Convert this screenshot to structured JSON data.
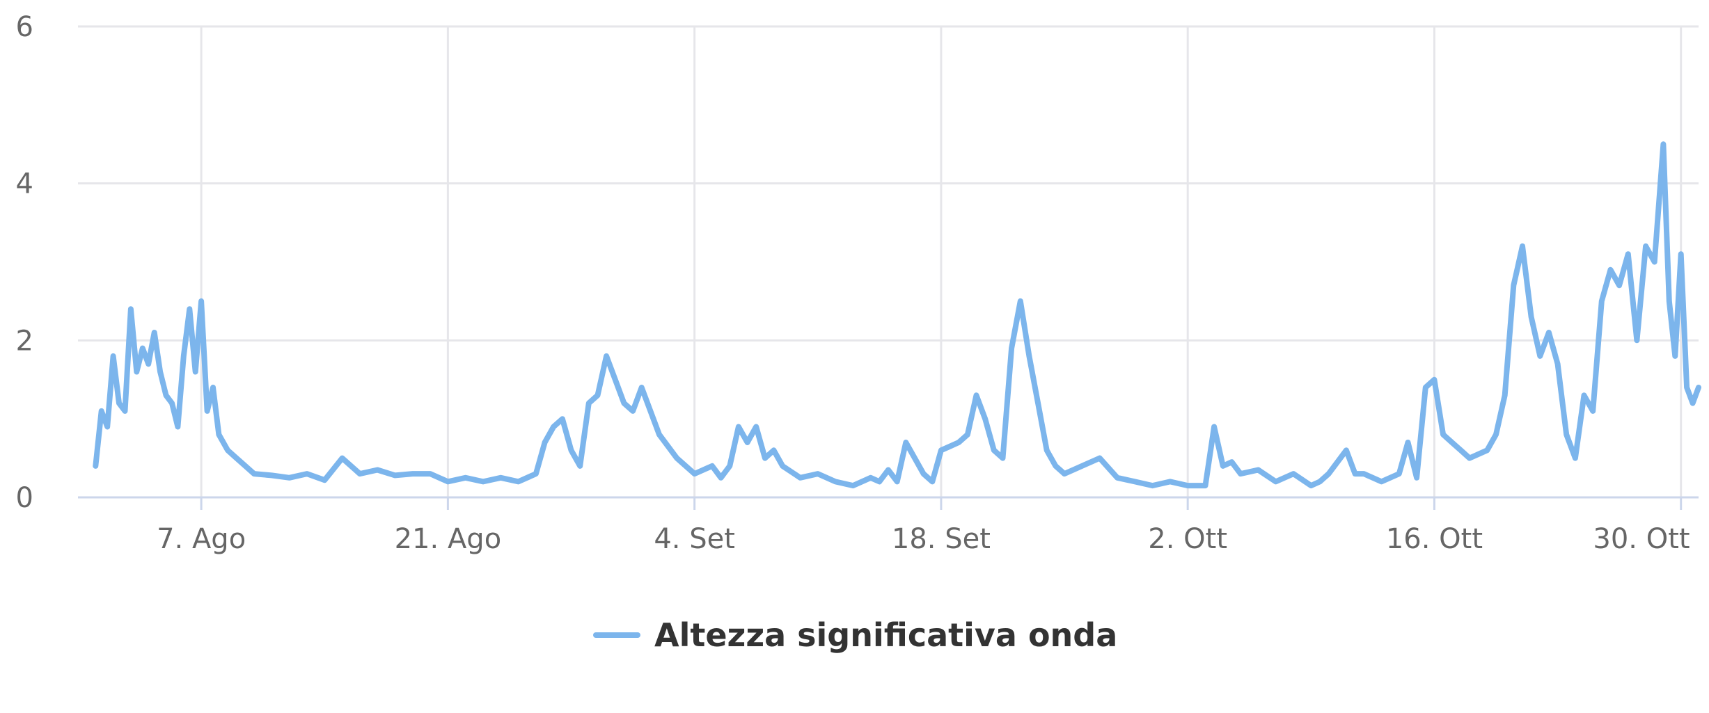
{
  "chart_data": {
    "type": "line",
    "title": "",
    "xlabel": "",
    "ylabel": "",
    "ylim": [
      0,
      6
    ],
    "y_ticks": [
      0,
      2,
      4,
      6
    ],
    "x_range": [
      "2023-07-31",
      "2023-10-31"
    ],
    "x_ticks": [
      {
        "date": "2023-08-07",
        "label": "7. Ago"
      },
      {
        "date": "2023-08-21",
        "label": "21. Ago"
      },
      {
        "date": "2023-09-04",
        "label": "4. Set"
      },
      {
        "date": "2023-09-18",
        "label": "18. Set"
      },
      {
        "date": "2023-10-02",
        "label": "2. Ott"
      },
      {
        "date": "2023-10-16",
        "label": "16. Ott"
      },
      {
        "date": "2023-10-30",
        "label": "30. Ott"
      }
    ],
    "grid": true,
    "legend_position": "bottom-center",
    "colors": {
      "series": "#7cb5ec"
    },
    "series": [
      {
        "name": "Altezza significativa onda",
        "x": [
          "2023-08-01 00:00",
          "2023-08-01 08:00",
          "2023-08-01 16:00",
          "2023-08-02 00:00",
          "2023-08-02 08:00",
          "2023-08-02 16:00",
          "2023-08-03 00:00",
          "2023-08-03 08:00",
          "2023-08-03 16:00",
          "2023-08-04 00:00",
          "2023-08-04 08:00",
          "2023-08-04 16:00",
          "2023-08-05 00:00",
          "2023-08-05 08:00",
          "2023-08-05 16:00",
          "2023-08-06 00:00",
          "2023-08-06 08:00",
          "2023-08-06 16:00",
          "2023-08-07 00:00",
          "2023-08-07 08:00",
          "2023-08-07 16:00",
          "2023-08-08 00:00",
          "2023-08-08 12:00",
          "2023-08-09 00:00",
          "2023-08-09 12:00",
          "2023-08-10 00:00",
          "2023-08-11 00:00",
          "2023-08-12 00:00",
          "2023-08-13 00:00",
          "2023-08-14 00:00",
          "2023-08-15 00:00",
          "2023-08-16 00:00",
          "2023-08-17 00:00",
          "2023-08-18 00:00",
          "2023-08-19 00:00",
          "2023-08-20 00:00",
          "2023-08-21 00:00",
          "2023-08-22 00:00",
          "2023-08-23 00:00",
          "2023-08-24 00:00",
          "2023-08-25 00:00",
          "2023-08-26 00:00",
          "2023-08-26 12:00",
          "2023-08-27 00:00",
          "2023-08-27 12:00",
          "2023-08-28 00:00",
          "2023-08-28 12:00",
          "2023-08-29 00:00",
          "2023-08-29 12:00",
          "2023-08-30 00:00",
          "2023-08-30 12:00",
          "2023-08-31 00:00",
          "2023-08-31 12:00",
          "2023-09-01 00:00",
          "2023-09-02 00:00",
          "2023-09-03 00:00",
          "2023-09-04 00:00",
          "2023-09-05 00:00",
          "2023-09-05 12:00",
          "2023-09-06 00:00",
          "2023-09-06 12:00",
          "2023-09-07 00:00",
          "2023-09-07 12:00",
          "2023-09-08 00:00",
          "2023-09-08 12:00",
          "2023-09-09 00:00",
          "2023-09-10 00:00",
          "2023-09-11 00:00",
          "2023-09-12 00:00",
          "2023-09-13 00:00",
          "2023-09-14 00:00",
          "2023-09-14 12:00",
          "2023-09-15 00:00",
          "2023-09-15 12:00",
          "2023-09-16 00:00",
          "2023-09-16 12:00",
          "2023-09-17 00:00",
          "2023-09-17 12:00",
          "2023-09-18 00:00",
          "2023-09-18 12:00",
          "2023-09-19 00:00",
          "2023-09-19 12:00",
          "2023-09-20 00:00",
          "2023-09-20 12:00",
          "2023-09-21 00:00",
          "2023-09-21 12:00",
          "2023-09-22 00:00",
          "2023-09-22 12:00",
          "2023-09-23 00:00",
          "2023-09-23 12:00",
          "2023-09-24 00:00",
          "2023-09-24 12:00",
          "2023-09-25 00:00",
          "2023-09-26 00:00",
          "2023-09-27 00:00",
          "2023-09-28 00:00",
          "2023-09-29 00:00",
          "2023-09-30 00:00",
          "2023-10-01 00:00",
          "2023-10-02 00:00",
          "2023-10-03 00:00",
          "2023-10-03 12:00",
          "2023-10-04 00:00",
          "2023-10-04 12:00",
          "2023-10-05 00:00",
          "2023-10-06 00:00",
          "2023-10-07 00:00",
          "2023-10-08 00:00",
          "2023-10-09 00:00",
          "2023-10-09 12:00",
          "2023-10-10 00:00",
          "2023-10-11 00:00",
          "2023-10-11 12:00",
          "2023-10-12 00:00",
          "2023-10-13 00:00",
          "2023-10-14 00:00",
          "2023-10-14 12:00",
          "2023-10-15 00:00",
          "2023-10-15 12:00",
          "2023-10-16 00:00",
          "2023-10-16 12:00",
          "2023-10-17 00:00",
          "2023-10-17 12:00",
          "2023-10-18 00:00",
          "2023-10-19 00:00",
          "2023-10-19 12:00",
          "2023-10-20 00:00",
          "2023-10-20 12:00",
          "2023-10-21 00:00",
          "2023-10-21 12:00",
          "2023-10-22 00:00",
          "2023-10-22 12:00",
          "2023-10-23 00:00",
          "2023-10-23 12:00",
          "2023-10-24 00:00",
          "2023-10-24 12:00",
          "2023-10-25 00:00",
          "2023-10-25 12:00",
          "2023-10-26 00:00",
          "2023-10-26 12:00",
          "2023-10-27 00:00",
          "2023-10-27 12:00",
          "2023-10-28 00:00",
          "2023-10-28 12:00",
          "2023-10-29 00:00",
          "2023-10-29 08:00",
          "2023-10-29 16:00",
          "2023-10-30 00:00",
          "2023-10-30 08:00",
          "2023-10-30 16:00",
          "2023-10-31 00:00"
        ],
        "values": [
          0.4,
          1.1,
          0.9,
          1.8,
          1.2,
          1.1,
          2.4,
          1.6,
          1.9,
          1.7,
          2.1,
          1.6,
          1.3,
          1.2,
          0.9,
          1.8,
          2.4,
          1.6,
          2.5,
          1.1,
          1.4,
          0.8,
          0.6,
          0.5,
          0.4,
          0.3,
          0.28,
          0.25,
          0.3,
          0.22,
          0.5,
          0.3,
          0.35,
          0.28,
          0.3,
          0.3,
          0.2,
          0.25,
          0.2,
          0.25,
          0.2,
          0.3,
          0.7,
          0.9,
          1.0,
          0.6,
          0.4,
          1.2,
          1.3,
          1.8,
          1.5,
          1.2,
          1.1,
          1.4,
          0.8,
          0.5,
          0.3,
          0.4,
          0.25,
          0.4,
          0.9,
          0.7,
          0.9,
          0.5,
          0.6,
          0.4,
          0.25,
          0.3,
          0.2,
          0.15,
          0.25,
          0.2,
          0.35,
          0.2,
          0.7,
          0.5,
          0.3,
          0.2,
          0.6,
          0.65,
          0.7,
          0.8,
          1.3,
          1.0,
          0.6,
          0.5,
          1.9,
          2.5,
          1.8,
          1.2,
          0.6,
          0.4,
          0.3,
          0.4,
          0.5,
          0.25,
          0.2,
          0.15,
          0.2,
          0.15,
          0.15,
          0.9,
          0.4,
          0.45,
          0.3,
          0.35,
          0.2,
          0.3,
          0.15,
          0.2,
          0.3,
          0.6,
          0.3,
          0.3,
          0.2,
          0.3,
          0.7,
          0.25,
          1.4,
          1.5,
          0.8,
          0.7,
          0.6,
          0.5,
          0.6,
          0.8,
          1.3,
          2.7,
          3.2,
          2.3,
          1.8,
          2.1,
          1.7,
          0.8,
          0.5,
          1.3,
          1.1,
          2.5,
          2.9,
          2.7,
          3.1,
          2.0,
          3.2,
          3.0,
          4.5,
          2.5,
          1.8,
          3.1,
          1.4,
          1.2,
          1.4
        ]
      }
    ]
  }
}
